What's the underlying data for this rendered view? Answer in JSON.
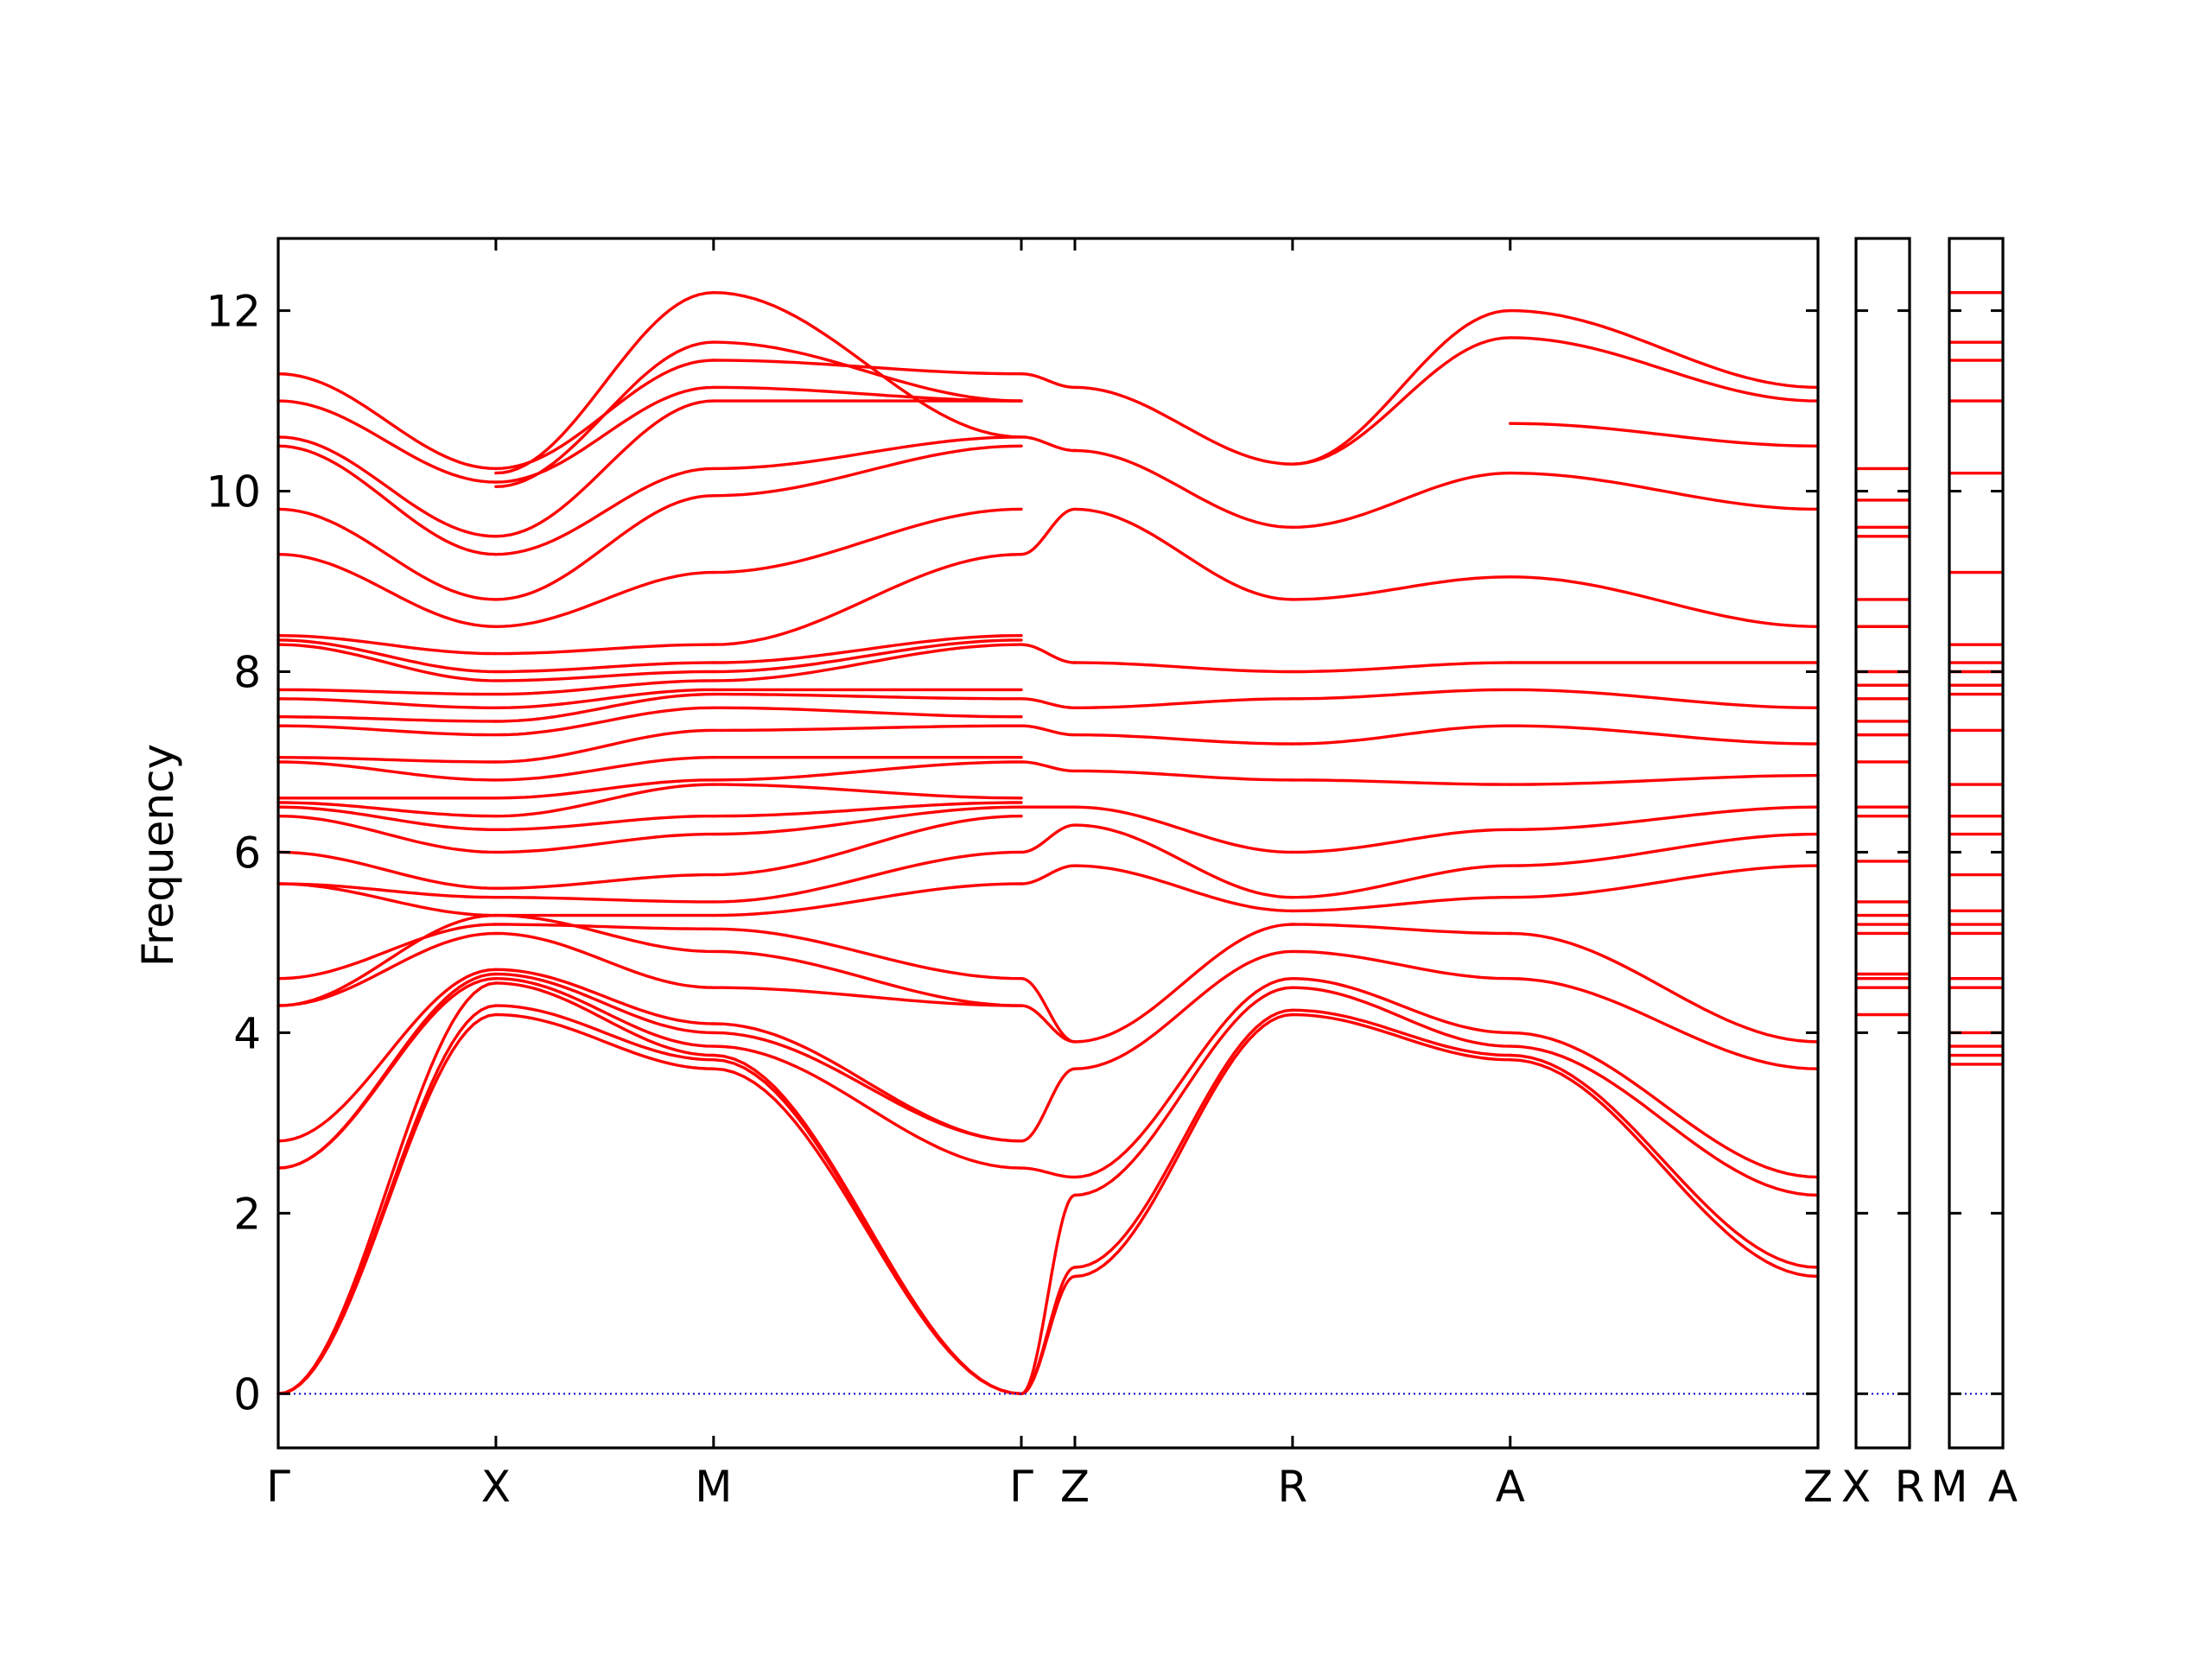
{
  "chart_data": {
    "type": "line",
    "title": "",
    "xlabel": "",
    "ylabel": "Frequency",
    "ylim": [
      -0.6,
      12.8
    ],
    "yticks": [
      0,
      2,
      4,
      6,
      8,
      10,
      12
    ],
    "ytick_labels": [
      "0",
      "2",
      "4",
      "6",
      "8",
      "10",
      "12"
    ],
    "grid": false,
    "legend": "none",
    "zero_line": {
      "y": 0,
      "style": "dotted",
      "color": "#0000cc"
    },
    "colors": {
      "bands": "#ff0000",
      "axes": "#000000"
    },
    "panels": [
      {
        "high_symmetry_points": [
          {
            "label": "Γ",
            "x": 0
          },
          {
            "label": "X",
            "x": 1.0
          },
          {
            "label": "M",
            "x": 2.0
          },
          {
            "label": "Γ",
            "x": 3.414
          },
          {
            "label": "Z",
            "x": 3.66
          },
          {
            "label": "R",
            "x": 4.66
          },
          {
            "label": "A",
            "x": 5.66
          },
          {
            "label": "Z",
            "x": 7.074
          }
        ],
        "x_range": [
          0,
          7.074
        ],
        "segments": [
          {
            "from": "Γ",
            "to": "X",
            "bands": [
              [
                0.0,
                4.2
              ],
              [
                0.0,
                4.3
              ],
              [
                0.0,
                4.55
              ],
              [
                2.5,
                4.6
              ],
              [
                2.5,
                4.65
              ],
              [
                2.8,
                4.7
              ],
              [
                4.3,
                5.1
              ],
              [
                4.3,
                5.3
              ],
              [
                4.6,
                5.2
              ],
              [
                5.65,
                5.3
              ],
              [
                5.65,
                5.5
              ],
              [
                6.0,
                5.6
              ],
              [
                6.4,
                6.0
              ],
              [
                6.5,
                6.25
              ],
              [
                6.55,
                6.4
              ],
              [
                6.6,
                6.6
              ],
              [
                7.0,
                6.8
              ],
              [
                7.05,
                7.0
              ],
              [
                7.4,
                7.3
              ],
              [
                7.5,
                7.45
              ],
              [
                7.7,
                7.6
              ],
              [
                7.8,
                7.75
              ],
              [
                8.3,
                7.9
              ],
              [
                8.35,
                8.0
              ],
              [
                8.4,
                8.2
              ],
              [
                9.3,
                8.5
              ],
              [
                9.8,
                8.8
              ],
              [
                10.5,
                9.3
              ],
              [
                10.6,
                9.5
              ],
              [
                11.0,
                10.1
              ],
              [
                11.3,
                10.25
              ]
            ]
          },
          {
            "from": "X",
            "to": "M",
            "bands": [
              [
                4.2,
                3.6
              ],
              [
                4.3,
                3.7
              ],
              [
                4.55,
                3.75
              ],
              [
                4.6,
                3.85
              ],
              [
                4.65,
                4.0
              ],
              [
                4.7,
                4.1
              ],
              [
                5.1,
                4.5
              ],
              [
                5.3,
                4.9
              ],
              [
                5.2,
                5.15
              ],
              [
                5.3,
                5.3
              ],
              [
                5.5,
                5.45
              ],
              [
                5.6,
                5.75
              ],
              [
                6.0,
                6.2
              ],
              [
                6.25,
                6.4
              ],
              [
                6.4,
                6.75
              ],
              [
                6.6,
                6.8
              ],
              [
                6.8,
                7.05
              ],
              [
                7.0,
                7.35
              ],
              [
                7.3,
                7.6
              ],
              [
                7.45,
                7.75
              ],
              [
                7.6,
                7.8
              ],
              [
                7.75,
                7.9
              ],
              [
                7.9,
                8.0
              ],
              [
                8.0,
                8.1
              ],
              [
                8.2,
                8.3
              ],
              [
                8.5,
                9.1
              ],
              [
                8.8,
                9.95
              ],
              [
                9.3,
                10.25
              ],
              [
                9.5,
                11.0
              ],
              [
                10.1,
                11.15
              ],
              [
                10.25,
                11.45
              ],
              [
                10.05,
                11.65
              ],
              [
                10.2,
                12.2
              ]
            ]
          },
          {
            "from": "M",
            "to": "Γ",
            "bands": [
              [
                3.6,
                0.0
              ],
              [
                3.7,
                0.0
              ],
              [
                3.75,
                0.0
              ],
              [
                3.85,
                2.5
              ],
              [
                4.0,
                2.8
              ],
              [
                4.1,
                2.8
              ],
              [
                4.5,
                4.3
              ],
              [
                4.9,
                4.3
              ],
              [
                5.15,
                4.6
              ],
              [
                5.3,
                5.65
              ],
              [
                5.45,
                6.0
              ],
              [
                5.75,
                6.4
              ],
              [
                6.2,
                6.5
              ],
              [
                6.4,
                6.55
              ],
              [
                6.75,
                6.6
              ],
              [
                6.8,
                7.0
              ],
              [
                7.05,
                7.05
              ],
              [
                7.35,
                7.4
              ],
              [
                7.6,
                7.5
              ],
              [
                7.75,
                7.7
              ],
              [
                7.8,
                7.8
              ],
              [
                7.9,
                8.3
              ],
              [
                8.0,
                8.35
              ],
              [
                8.1,
                8.4
              ],
              [
                8.3,
                9.3
              ],
              [
                9.1,
                9.8
              ],
              [
                9.95,
                10.5
              ],
              [
                10.25,
                10.6
              ],
              [
                11.0,
                11.0
              ],
              [
                11.15,
                11.0
              ],
              [
                11.45,
                11.3
              ],
              [
                11.65,
                11.0
              ],
              [
                12.2,
                10.6
              ]
            ]
          },
          {
            "from": "Γ",
            "to": "Z",
            "bands": [
              [
                0.0,
                1.3
              ],
              [
                0.0,
                1.4
              ],
              [
                0.0,
                2.2
              ],
              [
                2.5,
                2.4
              ],
              [
                2.8,
                3.6
              ],
              [
                4.3,
                3.9
              ],
              [
                4.6,
                3.9
              ],
              [
                5.65,
                5.85
              ],
              [
                6.0,
                6.3
              ],
              [
                6.5,
                6.5
              ],
              [
                7.0,
                6.9
              ],
              [
                7.4,
                7.3
              ],
              [
                7.7,
                7.6
              ],
              [
                8.3,
                8.1
              ],
              [
                9.3,
                9.8
              ],
              [
                10.6,
                10.45
              ],
              [
                11.3,
                11.15
              ]
            ]
          },
          {
            "from": "Z",
            "to": "R",
            "bands": [
              [
                1.3,
                4.2
              ],
              [
                1.4,
                4.25
              ],
              [
                2.2,
                4.5
              ],
              [
                2.4,
                4.6
              ],
              [
                3.6,
                4.9
              ],
              [
                3.9,
                5.2
              ],
              [
                5.85,
                5.35
              ],
              [
                6.3,
                5.5
              ],
              [
                6.5,
                6.0
              ],
              [
                6.9,
                6.8
              ],
              [
                7.3,
                7.2
              ],
              [
                7.6,
                7.7
              ],
              [
                8.1,
                8.0
              ],
              [
                9.8,
                8.8
              ],
              [
                10.45,
                9.6
              ],
              [
                11.15,
                10.3
              ]
            ]
          },
          {
            "from": "R",
            "to": "A",
            "bands": [
              [
                4.2,
                3.7
              ],
              [
                4.25,
                3.75
              ],
              [
                4.5,
                3.85
              ],
              [
                4.6,
                4.0
              ],
              [
                4.9,
                4.6
              ],
              [
                5.2,
                5.1
              ],
              [
                5.35,
                5.5
              ],
              [
                5.5,
                5.85
              ],
              [
                6.0,
                6.25
              ],
              [
                6.8,
                6.75
              ],
              [
                7.2,
                7.4
              ],
              [
                7.7,
                7.8
              ],
              [
                8.0,
                8.1
              ],
              [
                8.8,
                9.05
              ],
              [
                9.6,
                10.2
              ],
              [
                10.3,
                11.7
              ],
              [
                10.3,
                12.0
              ]
            ]
          },
          {
            "from": "A",
            "to": "Z",
            "bands": [
              [
                3.7,
                1.3
              ],
              [
                3.75,
                1.4
              ],
              [
                3.85,
                2.2
              ],
              [
                4.0,
                2.4
              ],
              [
                4.6,
                3.6
              ],
              [
                5.1,
                3.9
              ],
              [
                5.5,
                5.85
              ],
              [
                5.85,
                6.2
              ],
              [
                6.25,
                6.5
              ],
              [
                6.75,
                6.85
              ],
              [
                7.4,
                7.2
              ],
              [
                7.8,
                7.6
              ],
              [
                8.1,
                8.1
              ],
              [
                9.05,
                8.5
              ],
              [
                10.2,
                9.8
              ],
              [
                10.75,
                10.5
              ],
              [
                11.7,
                11.0
              ],
              [
                12.0,
                11.15
              ]
            ]
          }
        ]
      },
      {
        "high_symmetry_points": [
          {
            "label": "X",
            "x": 0
          },
          {
            "label": "R",
            "x": 0.66
          }
        ],
        "x_range": [
          0,
          0.66
        ],
        "bands_flat": [
          4.2,
          4.5,
          4.6,
          4.65,
          5.1,
          5.2,
          5.3,
          5.45,
          5.9,
          6.4,
          6.5,
          7.0,
          7.3,
          7.45,
          7.7,
          7.85,
          8.0,
          8.5,
          8.8,
          9.5,
          9.6,
          9.9,
          10.25
        ]
      },
      {
        "high_symmetry_points": [
          {
            "label": "M",
            "x": 0
          },
          {
            "label": "A",
            "x": 0.66
          }
        ],
        "x_range": [
          0,
          0.66
        ],
        "bands_flat": [
          3.65,
          3.75,
          3.85,
          4.0,
          4.5,
          4.6,
          5.1,
          5.2,
          5.35,
          5.75,
          6.2,
          6.4,
          6.75,
          7.35,
          7.75,
          7.85,
          8.0,
          8.1,
          8.3,
          9.1,
          10.2,
          11.0,
          11.45,
          11.65,
          12.2
        ]
      }
    ]
  }
}
